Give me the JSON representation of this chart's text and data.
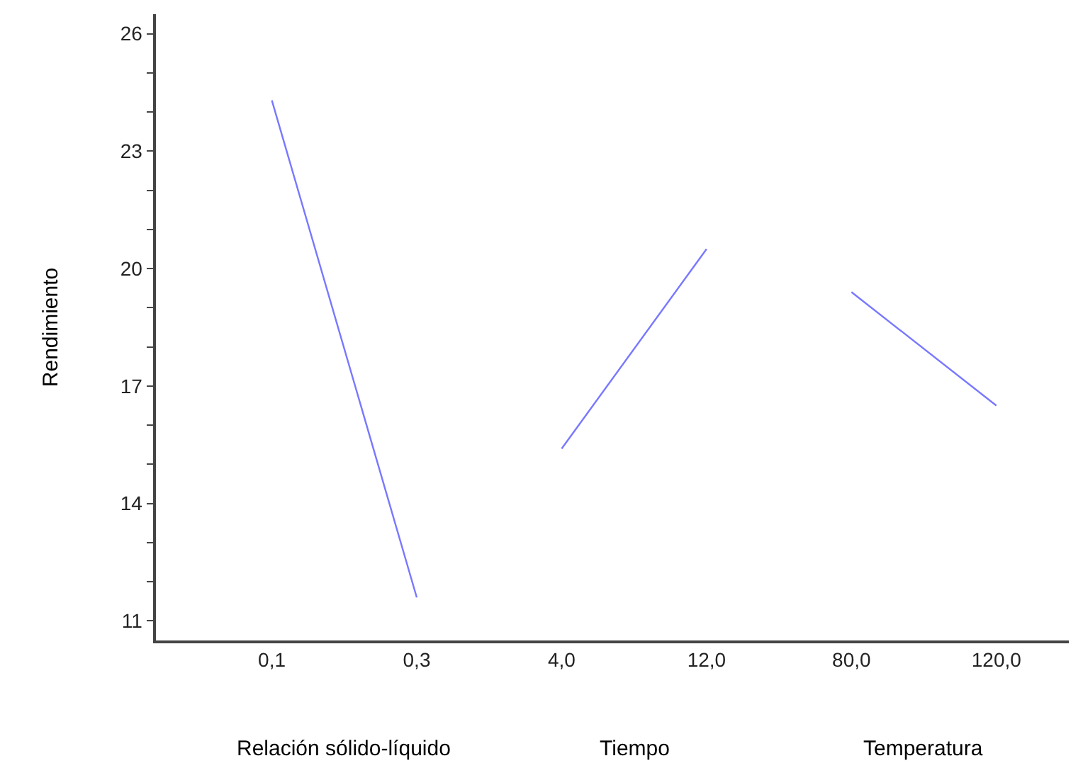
{
  "chart_data": {
    "type": "line",
    "ylabel": "Rendimiento",
    "categories": [
      "0,1",
      "0,3",
      "4,0",
      "12,0",
      "80,0",
      "120,0"
    ],
    "series": [
      {
        "color": "#7878ff",
        "values": [
          24.3,
          11.6,
          null,
          null,
          null,
          null
        ]
      },
      {
        "color": "#7878ff",
        "values": [
          null,
          null,
          15.4,
          20.5,
          null,
          null
        ]
      },
      {
        "color": "#7878ff",
        "values": [
          null,
          null,
          null,
          null,
          19.4,
          16.5
        ]
      }
    ],
    "annotations": [
      "Relación sólido-líquido",
      "Tiempo",
      "Temperatura"
    ],
    "ylim": [
      10.5,
      26.5
    ],
    "yticks": [
      11,
      {
        "value": 12,
        "label": null
      },
      {
        "value": 13,
        "label": null
      },
      14,
      {
        "value": 15,
        "label": null
      },
      {
        "value": 16,
        "label": null
      },
      17,
      {
        "value": 18,
        "label": null
      },
      {
        "value": 19,
        "label": null
      },
      20,
      {
        "value": 21,
        "label": null
      },
      {
        "value": 22,
        "label": null
      },
      23,
      {
        "value": 24,
        "label": null
      },
      {
        "value": 25,
        "label": null
      },
      26
    ],
    "marker": "none",
    "line_style": "solid"
  }
}
